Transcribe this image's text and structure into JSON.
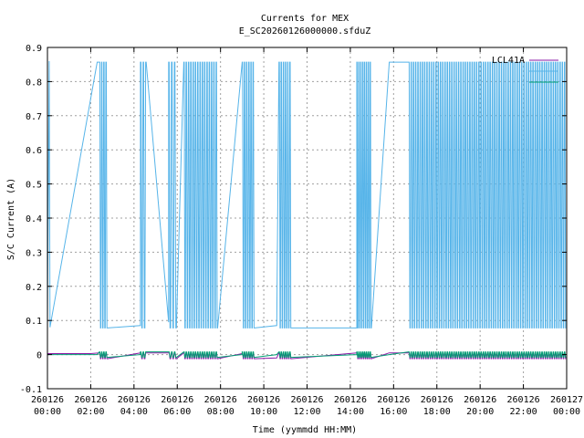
{
  "chart_data": {
    "type": "line",
    "title": "Currents for MEX",
    "subtitle": "E_SC20260126000000.sfduZ",
    "xlabel": "Time (yymmdd HH:MM)",
    "ylabel": "S/C Current (A)",
    "xlim_hours": [
      0,
      24
    ],
    "ylim": [
      -0.1,
      0.9
    ],
    "yticks": [
      "-0.1",
      "0",
      "0.1",
      "0.2",
      "0.3",
      "0.4",
      "0.5",
      "0.6",
      "0.7",
      "0.8",
      "0.9"
    ],
    "xticks": [
      {
        "date": "260126",
        "time": "00:00"
      },
      {
        "date": "260126",
        "time": "02:00"
      },
      {
        "date": "260126",
        "time": "04:00"
      },
      {
        "date": "260126",
        "time": "06:00"
      },
      {
        "date": "260126",
        "time": "08:00"
      },
      {
        "date": "260126",
        "time": "10:00"
      },
      {
        "date": "260126",
        "time": "12:00"
      },
      {
        "date": "260126",
        "time": "14:00"
      },
      {
        "date": "260126",
        "time": "16:00"
      },
      {
        "date": "260126",
        "time": "18:00"
      },
      {
        "date": "260126",
        "time": "20:00"
      },
      {
        "date": "260126",
        "time": "22:00"
      },
      {
        "date": "260127",
        "time": "00:00"
      }
    ],
    "grid": true,
    "legend_position": "top-right",
    "colors": {
      "LCL41A": "#8b1aa6",
      "blue": "#56b4e9",
      "green": "#009e73",
      "grid": "#a0a0a0"
    },
    "series": [
      {
        "name": "LCL41A",
        "color": "#8b1aa6",
        "high": 0.005,
        "low": -0.012,
        "segments": [
          {
            "type": "point",
            "t": 0.0,
            "v": 0.003
          },
          {
            "type": "line",
            "t": 2.0,
            "v": 0.003
          },
          {
            "type": "toggle",
            "start": 2.4,
            "end": 2.8,
            "n": 8
          },
          {
            "type": "line",
            "t": 4.3,
            "v": 0.005
          },
          {
            "type": "toggle",
            "start": 4.3,
            "end": 4.6,
            "n": 5
          },
          {
            "type": "toggle",
            "start": 5.6,
            "end": 6.0,
            "n": 6
          },
          {
            "type": "toggle",
            "start": 6.3,
            "end": 7.9,
            "n": 30
          },
          {
            "type": "line",
            "t": 9.0,
            "v": 0.003
          },
          {
            "type": "toggle",
            "start": 9.0,
            "end": 9.6,
            "n": 12
          },
          {
            "type": "line",
            "t": 10.6,
            "v": -0.01
          },
          {
            "type": "toggle",
            "start": 10.7,
            "end": 11.3,
            "n": 12
          },
          {
            "type": "line",
            "t": 14.3,
            "v": 0.005
          },
          {
            "type": "toggle",
            "start": 14.3,
            "end": 15.0,
            "n": 16
          },
          {
            "type": "line",
            "t": 15.8,
            "v": 0.005
          },
          {
            "type": "toggle",
            "start": 16.7,
            "end": 24.0,
            "n": 140
          }
        ]
      },
      {
        "name": "",
        "color": "#56b4e9",
        "high": 0.857,
        "low": 0.078,
        "segments": [
          {
            "type": "point",
            "t": 0.0,
            "v": 0.08
          },
          {
            "type": "line",
            "t": 0.08,
            "v": 0.86
          },
          {
            "type": "line",
            "t": 0.12,
            "v": 0.08
          },
          {
            "type": "line",
            "t": 2.3,
            "v": 0.857
          },
          {
            "type": "toggle",
            "start": 2.4,
            "end": 2.8,
            "n": 8
          },
          {
            "type": "line",
            "t": 4.3,
            "v": 0.085
          },
          {
            "type": "toggle",
            "start": 4.3,
            "end": 4.6,
            "n": 5
          },
          {
            "type": "line",
            "t": 5.6,
            "v": 0.095
          },
          {
            "type": "toggle",
            "start": 5.6,
            "end": 6.0,
            "n": 6
          },
          {
            "type": "toggle",
            "start": 6.3,
            "end": 7.9,
            "n": 30
          },
          {
            "type": "line",
            "t": 9.0,
            "v": 0.857
          },
          {
            "type": "toggle",
            "start": 9.0,
            "end": 9.6,
            "n": 12
          },
          {
            "type": "line",
            "t": 10.6,
            "v": 0.085
          },
          {
            "type": "toggle",
            "start": 10.7,
            "end": 11.3,
            "n": 12
          },
          {
            "type": "line",
            "t": 14.3,
            "v": 0.078
          },
          {
            "type": "toggle",
            "start": 14.3,
            "end": 15.0,
            "n": 16
          },
          {
            "type": "line",
            "t": 15.8,
            "v": 0.857
          },
          {
            "type": "line",
            "t": 16.1,
            "v": 0.857
          },
          {
            "type": "line",
            "t": 16.2,
            "v": 0.857
          },
          {
            "type": "toggle",
            "start": 16.7,
            "end": 24.0,
            "n": 140
          }
        ]
      },
      {
        "name": "",
        "color": "#009e73",
        "high": 0.008,
        "low": -0.008,
        "segments": [
          {
            "type": "point",
            "t": 0.0,
            "v": 0.0
          },
          {
            "type": "line",
            "t": 2.3,
            "v": 0.0
          },
          {
            "type": "toggle",
            "start": 2.4,
            "end": 2.8,
            "n": 8
          },
          {
            "type": "line",
            "t": 4.3,
            "v": 0.0
          },
          {
            "type": "toggle",
            "start": 4.3,
            "end": 4.6,
            "n": 5
          },
          {
            "type": "toggle",
            "start": 5.6,
            "end": 6.0,
            "n": 6
          },
          {
            "type": "toggle",
            "start": 6.3,
            "end": 7.9,
            "n": 30
          },
          {
            "type": "line",
            "t": 9.0,
            "v": 0.0
          },
          {
            "type": "toggle",
            "start": 9.0,
            "end": 9.6,
            "n": 12
          },
          {
            "type": "line",
            "t": 10.6,
            "v": 0.0
          },
          {
            "type": "toggle",
            "start": 10.7,
            "end": 11.3,
            "n": 12
          },
          {
            "type": "line",
            "t": 14.3,
            "v": 0.0
          },
          {
            "type": "toggle",
            "start": 14.3,
            "end": 15.0,
            "n": 16
          },
          {
            "type": "line",
            "t": 15.8,
            "v": 0.0
          },
          {
            "type": "toggle",
            "start": 16.7,
            "end": 24.0,
            "n": 140
          }
        ]
      }
    ]
  }
}
